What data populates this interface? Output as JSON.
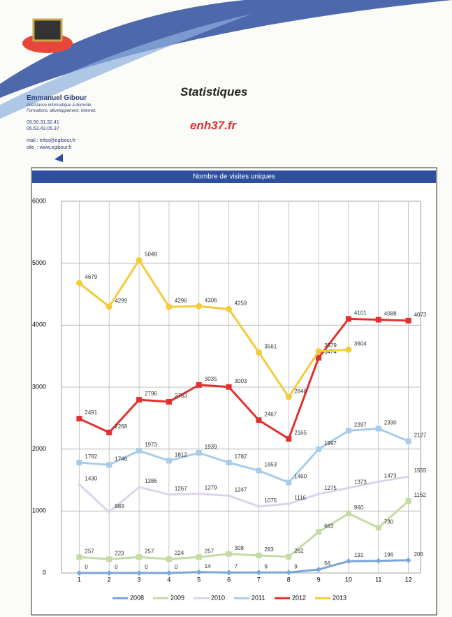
{
  "header": {
    "name": "Emmanuel Gibour",
    "tagline1": "Assistance informatique à domicile.",
    "tagline2": "Formations, développement, Internet.",
    "phone1": "09.50.31.32.41",
    "phone2": "06.63.43.05.37",
    "mail": "mail : infos@egibour.fr",
    "site": "site  : www.egibour.fr",
    "heading": "Statistiques",
    "website": "enh37.fr"
  },
  "chart_data": {
    "type": "line",
    "title": "Nombre de visites uniques",
    "categories": [
      "1",
      "2",
      "3",
      "4",
      "5",
      "6",
      "7",
      "8",
      "9",
      "10",
      "11",
      "12"
    ],
    "series": [
      {
        "name": "2008",
        "color": "#7aa6dc",
        "marker": "diamond",
        "values": [
          0,
          0,
          0,
          0,
          14,
          7,
          9,
          9,
          56,
          191,
          196,
          206
        ]
      },
      {
        "name": "2009",
        "color": "#c5dba4",
        "marker": "square",
        "values": [
          257,
          223,
          257,
          224,
          257,
          308,
          283,
          262,
          663,
          960,
          730,
          1162
        ]
      },
      {
        "name": "2010",
        "color": "#ddd3ea",
        "marker": "none",
        "values": [
          1430,
          983,
          1386,
          1267,
          1279,
          1247,
          1075,
          1116,
          1275,
          1373,
          1473,
          1555
        ]
      },
      {
        "name": "2011",
        "color": "#a8cdeb",
        "marker": "square",
        "values": [
          1782,
          1746,
          1973,
          1812,
          1939,
          1782,
          1653,
          1460,
          1997,
          2297,
          2330,
          2127
        ]
      },
      {
        "name": "2012",
        "color": "#e3302f",
        "marker": "square",
        "values": [
          2491,
          2268,
          2796,
          2763,
          3035,
          3003,
          2467,
          2165,
          3474,
          4101,
          4088,
          4073
        ]
      },
      {
        "name": "2013",
        "color": "#f4cb3a",
        "marker": "circle",
        "values": [
          4679,
          4299,
          5049,
          4296,
          4306,
          4259,
          3561,
          2840,
          3579,
          3604,
          null,
          null
        ]
      }
    ],
    "ylim": [
      0,
      6000
    ],
    "yticks": [
      0,
      1000,
      2000,
      3000,
      4000,
      5000,
      6000
    ],
    "grid": true,
    "legend": "bottom"
  }
}
